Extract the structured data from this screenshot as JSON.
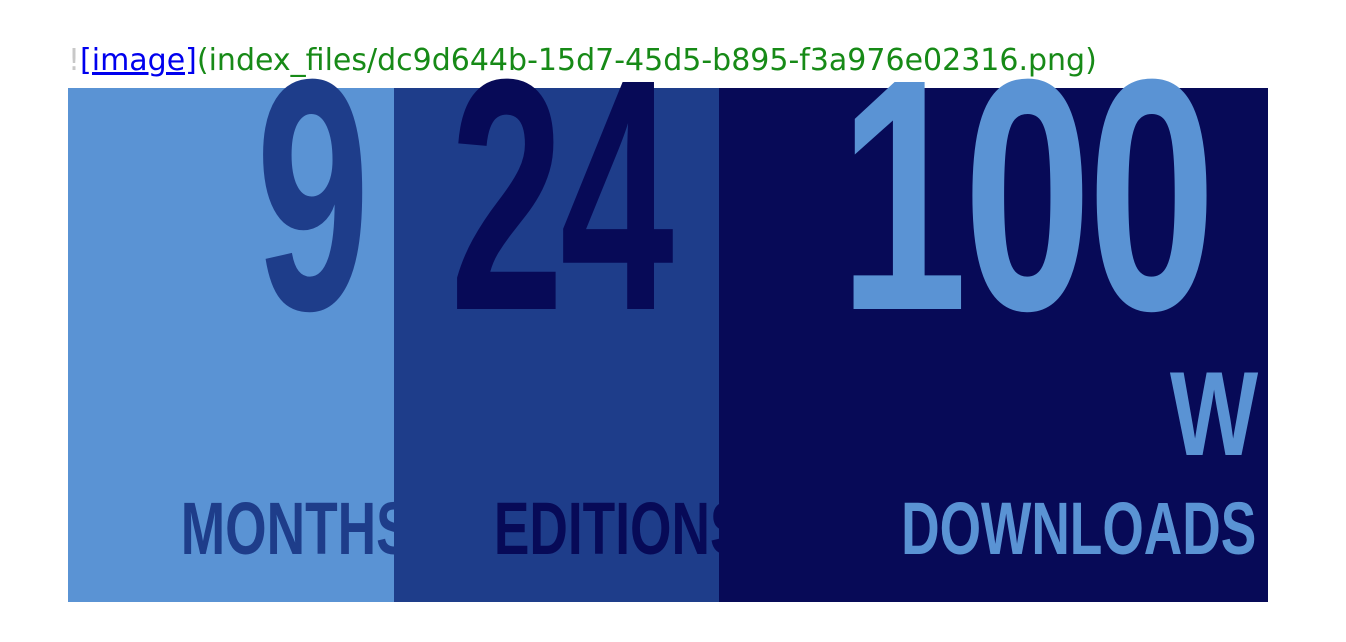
{
  "markdown": {
    "bang": "!",
    "link_text": "[image]",
    "url_text": "(index_files/dc9d644b-15d7-45d5-b895-f3a976e02316.png)"
  },
  "banner": {
    "months": {
      "number": "9",
      "label": "MONTHS",
      "bg_color": "#5a93d4",
      "fg_color": "#1e3d8a"
    },
    "editions": {
      "number": "24",
      "label": "EDITIONS",
      "bg_color": "#1e3d8a",
      "fg_color": "#070a57"
    },
    "downloads": {
      "number": "100",
      "unit": "W",
      "label": "DOWNLOADS",
      "bg_color": "#070a57",
      "fg_color": "#5a93d4"
    }
  }
}
